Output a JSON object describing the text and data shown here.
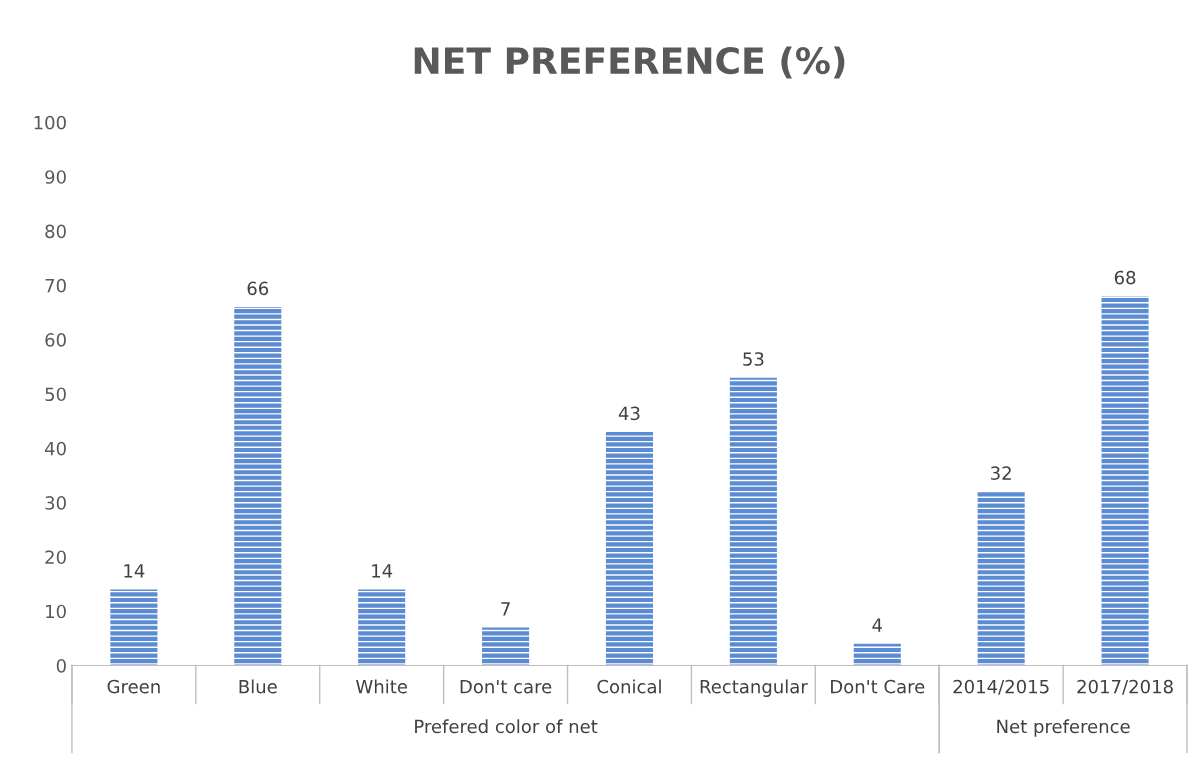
{
  "chart_data": {
    "type": "bar",
    "title": "NET PREFERENCE (%)",
    "categories": [
      "Green",
      "Blue",
      "White",
      "Don't care",
      "Conical",
      "Rectangular",
      "Don't Care",
      "2014/2015",
      "2017/2018"
    ],
    "values": [
      14,
      66,
      14,
      7,
      43,
      53,
      4,
      32,
      68
    ],
    "color": "#5b8bd2",
    "ylim": [
      0,
      100
    ],
    "yticks": [
      0,
      10,
      20,
      30,
      40,
      50,
      60,
      70,
      80,
      90,
      100
    ],
    "data_labels": true,
    "annotations": [
      "Prefered color of net",
      "Net preference"
    ]
  }
}
